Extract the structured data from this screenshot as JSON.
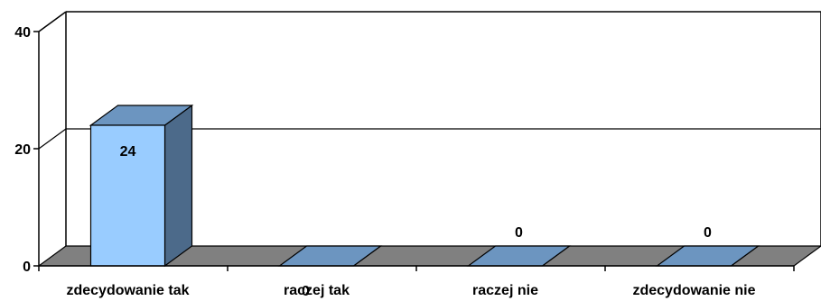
{
  "chart_data": {
    "type": "bar",
    "title": "",
    "xlabel": "",
    "ylabel": "",
    "categories": [
      "zdecydowanie tak",
      "raczej tak",
      "raczej nie",
      "zdecydowanie nie"
    ],
    "values": [
      24,
      0,
      0,
      0
    ],
    "data_labels": [
      "24",
      "0",
      "0",
      "0"
    ],
    "y_ticks": [
      0,
      20,
      40
    ],
    "ylim": [
      0,
      40
    ],
    "grid": true,
    "legend": "none",
    "style": "3d-column",
    "colors": {
      "bar_front": "#99CCFF",
      "bar_top": "#6C95C0",
      "bar_side": "#4C6A8A",
      "floor": "#808080",
      "grid": "#000000"
    }
  }
}
